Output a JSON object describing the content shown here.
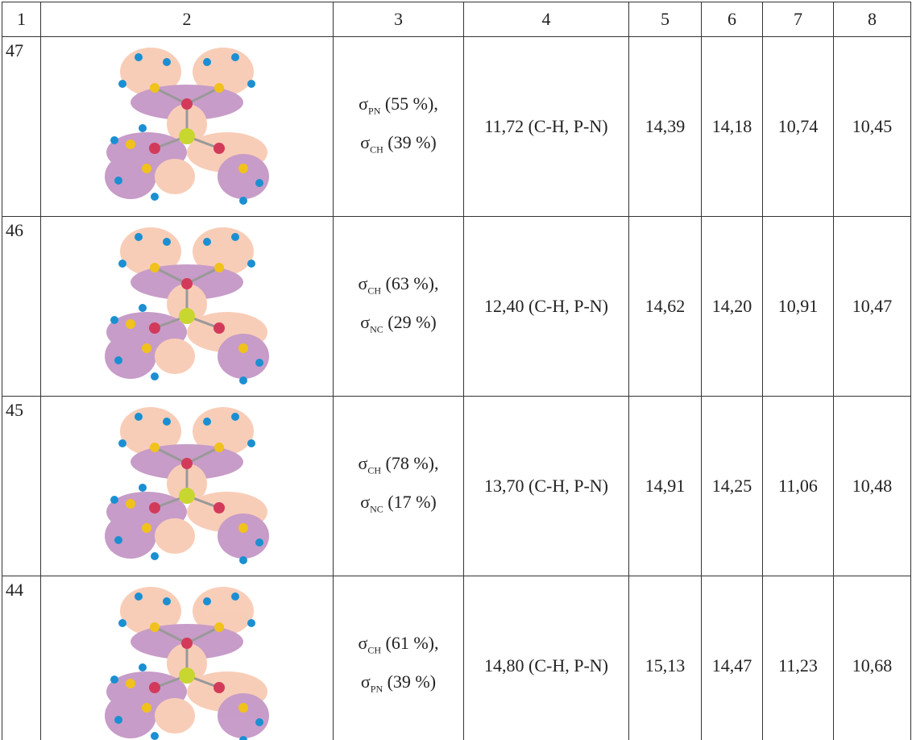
{
  "table": {
    "header": [
      "1",
      "2",
      "3",
      "4",
      "5",
      "6",
      "7",
      "8"
    ],
    "rows": [
      {
        "id": "47",
        "orbital": [
          {
            "symbol": "σ",
            "sub": "PN",
            "rest": " (55 %),"
          },
          {
            "symbol": "σ",
            "sub": "CH",
            "rest": " (39 %)"
          }
        ],
        "energy": "11,72 (C-H, P-N)",
        "c5": "14,39",
        "c6": "14,18",
        "c7": "10,74",
        "c8": "10,45"
      },
      {
        "id": "46",
        "orbital": [
          {
            "symbol": "σ",
            "sub": "CH",
            "rest": " (63 %),"
          },
          {
            "symbol": "σ",
            "sub": "NC",
            "rest": " (29 %)"
          }
        ],
        "energy": "12,40 (C-H, P-N)",
        "c5": "14,62",
        "c6": "14,20",
        "c7": "10,91",
        "c8": "10,47"
      },
      {
        "id": "45",
        "orbital": [
          {
            "symbol": "σ",
            "sub": "CH",
            "rest": " (78 %),"
          },
          {
            "symbol": "σ",
            "sub": "NC",
            "rest": " (17 %)"
          }
        ],
        "energy": "13,70 (C-H, P-N)",
        "c5": "14,91",
        "c6": "14,25",
        "c7": "11,06",
        "c8": "10,48"
      },
      {
        "id": "44",
        "orbital": [
          {
            "symbol": "σ",
            "sub": "CH",
            "rest": " (61 %),"
          },
          {
            "symbol": "σ",
            "sub": "PN",
            "rest": " (39 %)"
          }
        ],
        "energy": "14,80 (C-H, P-N)",
        "c5": "15,13",
        "c6": "14,47",
        "c7": "11,23",
        "c8": "10,68"
      }
    ]
  }
}
